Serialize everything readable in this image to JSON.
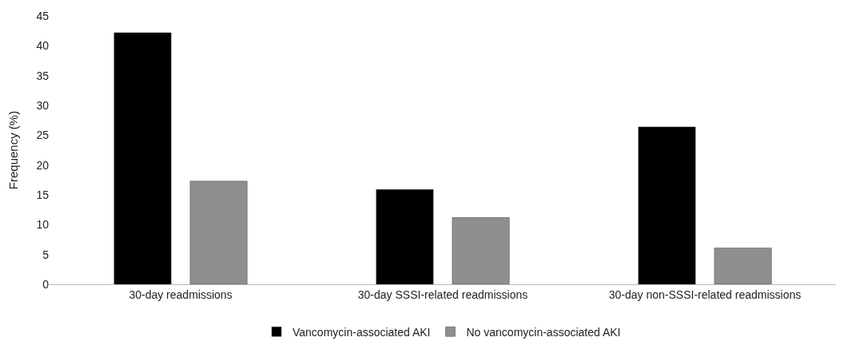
{
  "chart_data": {
    "type": "bar",
    "ylabel": "Frequency (%)",
    "categories": [
      "30-day readmissions",
      "30-day SSSI-related readmissions",
      "30-day non-SSSI-related readmissions"
    ],
    "series": [
      {
        "name": "Vancomycin-associated AKI",
        "color": "#000000",
        "values": [
          42.2,
          15.9,
          26.4
        ]
      },
      {
        "name": "No vancomycin-associated AKI",
        "color": "#8f8f8f",
        "values": [
          17.3,
          11.2,
          6.1
        ]
      }
    ],
    "ylim": [
      0,
      45
    ],
    "yticks": [
      0,
      5,
      10,
      15,
      20,
      25,
      30,
      35,
      40,
      45
    ],
    "grid": false,
    "legend": "bottom"
  }
}
